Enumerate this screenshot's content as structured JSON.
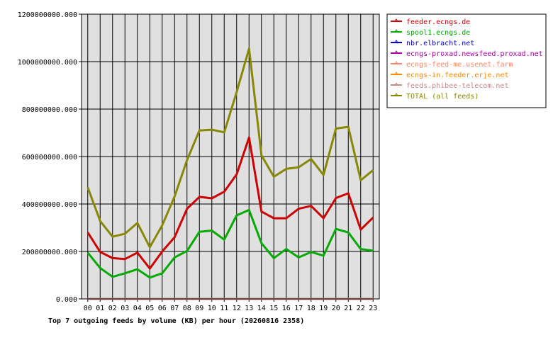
{
  "chart_data": {
    "type": "line",
    "title": "Top 7 outgoing feeds by volume (KB) per hour (20260816 2358)",
    "xlabel": "",
    "ylabel": "",
    "categories": [
      "00",
      "01",
      "02",
      "03",
      "04",
      "05",
      "06",
      "07",
      "08",
      "09",
      "10",
      "11",
      "12",
      "13",
      "14",
      "15",
      "16",
      "17",
      "18",
      "19",
      "20",
      "21",
      "22",
      "23"
    ],
    "ylim": [
      0,
      1200000000
    ],
    "yticks": [
      0,
      200000000,
      400000000,
      600000000,
      800000000,
      1000000000,
      1200000000
    ],
    "ytick_labels": [
      "0.000",
      "200000000.000",
      "400000000.000",
      "600000000.000",
      "800000000.000",
      "1000000000.000",
      "1200000000.000"
    ],
    "grid": true,
    "legend_position": "right",
    "background": "#e0e0e0",
    "series": [
      {
        "name": "feeder.ecngs.de",
        "color": "#cc0000",
        "values": [
          280000000,
          198000000,
          172000000,
          168000000,
          195000000,
          128000000,
          200000000,
          260000000,
          380000000,
          430000000,
          424000000,
          452000000,
          525000000,
          680000000,
          368000000,
          340000000,
          340000000,
          380000000,
          392000000,
          340000000,
          425000000,
          445000000,
          292000000,
          343000000
        ]
      },
      {
        "name": "spool1.ecngs.de",
        "color": "#00aa00",
        "values": [
          195000000,
          130000000,
          93000000,
          108000000,
          125000000,
          90000000,
          108000000,
          175000000,
          202000000,
          283000000,
          288000000,
          250000000,
          352000000,
          375000000,
          235000000,
          172000000,
          210000000,
          175000000,
          198000000,
          182000000,
          295000000,
          280000000,
          210000000,
          203000000
        ]
      },
      {
        "name": "nbr.elbracht.net",
        "color": "#0000cc",
        "values": [
          0,
          0,
          0,
          0,
          0,
          0,
          0,
          0,
          0,
          0,
          0,
          0,
          0,
          0,
          0,
          0,
          0,
          0,
          0,
          0,
          0,
          0,
          0,
          0
        ]
      },
      {
        "name": "ecngs-proxad.newsfeed.proxad.net",
        "color": "#aa00aa",
        "values": [
          0,
          0,
          0,
          0,
          0,
          0,
          0,
          0,
          0,
          0,
          0,
          0,
          0,
          0,
          0,
          0,
          0,
          0,
          0,
          0,
          0,
          0,
          0,
          0
        ]
      },
      {
        "name": "ecngs-feed-me.usenet.farm",
        "color": "#ff8866",
        "values": [
          0,
          0,
          0,
          0,
          0,
          0,
          0,
          0,
          0,
          0,
          0,
          0,
          0,
          0,
          0,
          0,
          0,
          0,
          0,
          0,
          0,
          0,
          0,
          0
        ]
      },
      {
        "name": "ecngs-in.feeder.erje.net",
        "color": "#ff8800",
        "values": [
          0,
          0,
          0,
          0,
          0,
          0,
          0,
          0,
          0,
          0,
          0,
          0,
          0,
          0,
          0,
          0,
          0,
          0,
          0,
          0,
          0,
          0,
          0,
          0
        ]
      },
      {
        "name": "feeds.phibee-telecom.net",
        "color": "#cc8888",
        "values": [
          0,
          0,
          0,
          0,
          0,
          0,
          0,
          0,
          0,
          0,
          0,
          0,
          0,
          0,
          0,
          0,
          0,
          0,
          0,
          0,
          0,
          0,
          0,
          0
        ]
      },
      {
        "name": "TOTAL (all feeds)",
        "color": "#888800",
        "values": [
          470000000,
          328000000,
          262000000,
          275000000,
          320000000,
          218000000,
          310000000,
          432000000,
          585000000,
          710000000,
          713000000,
          702000000,
          872000000,
          1055000000,
          605000000,
          515000000,
          548000000,
          555000000,
          590000000,
          522000000,
          718000000,
          725000000,
          500000000,
          543000000
        ]
      }
    ]
  }
}
